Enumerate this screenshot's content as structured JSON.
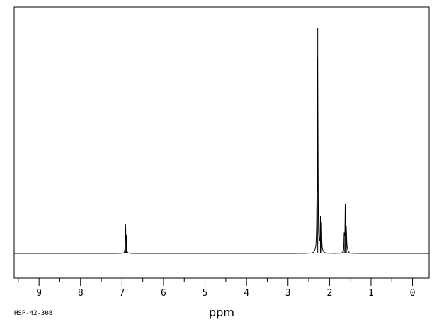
{
  "chart_data": {
    "type": "line",
    "title": "",
    "xlabel": "ppm",
    "ylabel": "",
    "xlim": [
      9.6,
      -0.4
    ],
    "ylim": [
      -0.11,
      1.0
    ],
    "x_reversed": true,
    "grid": false,
    "x_ticks": [
      9,
      8,
      7,
      6,
      5,
      4,
      3,
      2,
      1,
      0
    ],
    "x_tick_labels": [
      "9",
      "8",
      "7",
      "6",
      "5",
      "4",
      "3",
      "2",
      "1",
      "0"
    ],
    "series": [
      {
        "peaks": [
          {
            "x": 6.915,
            "y": 0.13
          },
          {
            "x": 6.895,
            "y": 0.07
          },
          {
            "x": 2.285,
            "y": 1.0
          },
          {
            "x": 2.305,
            "y": 0.16
          },
          {
            "x": 2.22,
            "y": 0.13
          },
          {
            "x": 2.195,
            "y": 0.12
          },
          {
            "x": 1.62,
            "y": 0.22
          },
          {
            "x": 1.595,
            "y": 0.09
          },
          {
            "x": 1.645,
            "y": 0.09
          }
        ]
      }
    ]
  },
  "code": "HSP-42-308"
}
